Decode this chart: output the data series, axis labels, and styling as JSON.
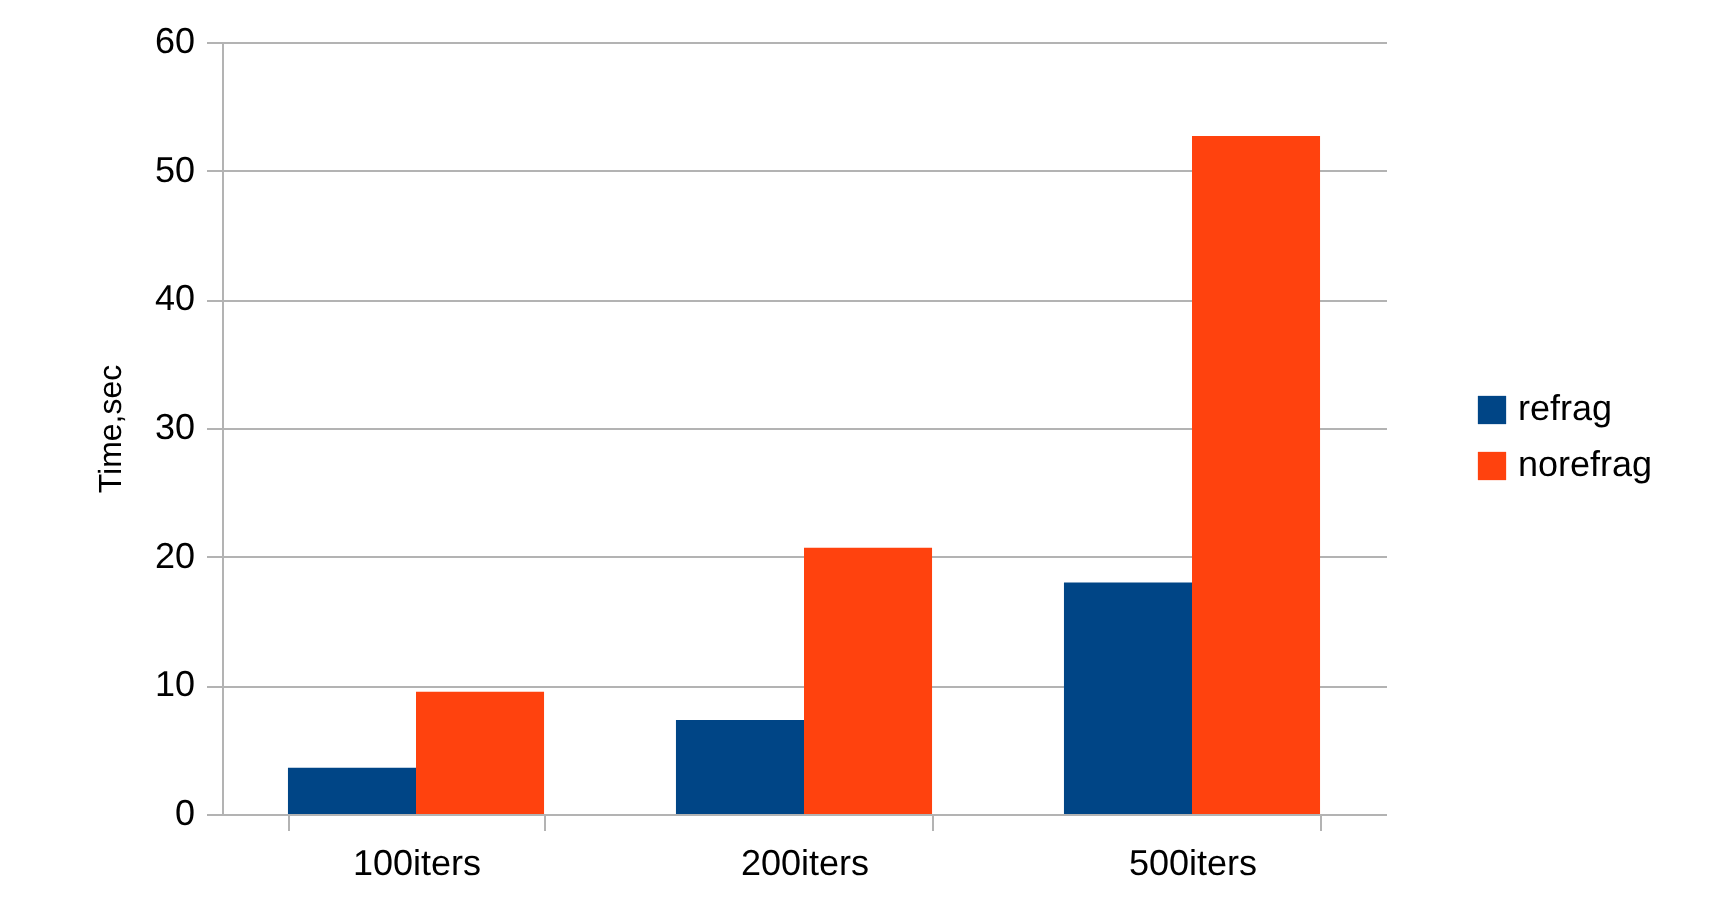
{
  "chart_data": {
    "type": "bar",
    "ylabel": "Time,sec",
    "categories": [
      "100iters",
      "200iters",
      "500iters"
    ],
    "series": [
      {
        "name": "refrag",
        "color": "#004586",
        "values": [
          3.6,
          7.3,
          18.0
        ]
      },
      {
        "name": "norefrag",
        "color": "#ff420e",
        "values": [
          9.5,
          20.7,
          52.7
        ]
      }
    ],
    "ylim": [
      0,
      60
    ],
    "yticks": [
      0,
      10,
      20,
      30,
      40,
      50,
      60
    ],
    "grid": "y",
    "legend": "right"
  }
}
